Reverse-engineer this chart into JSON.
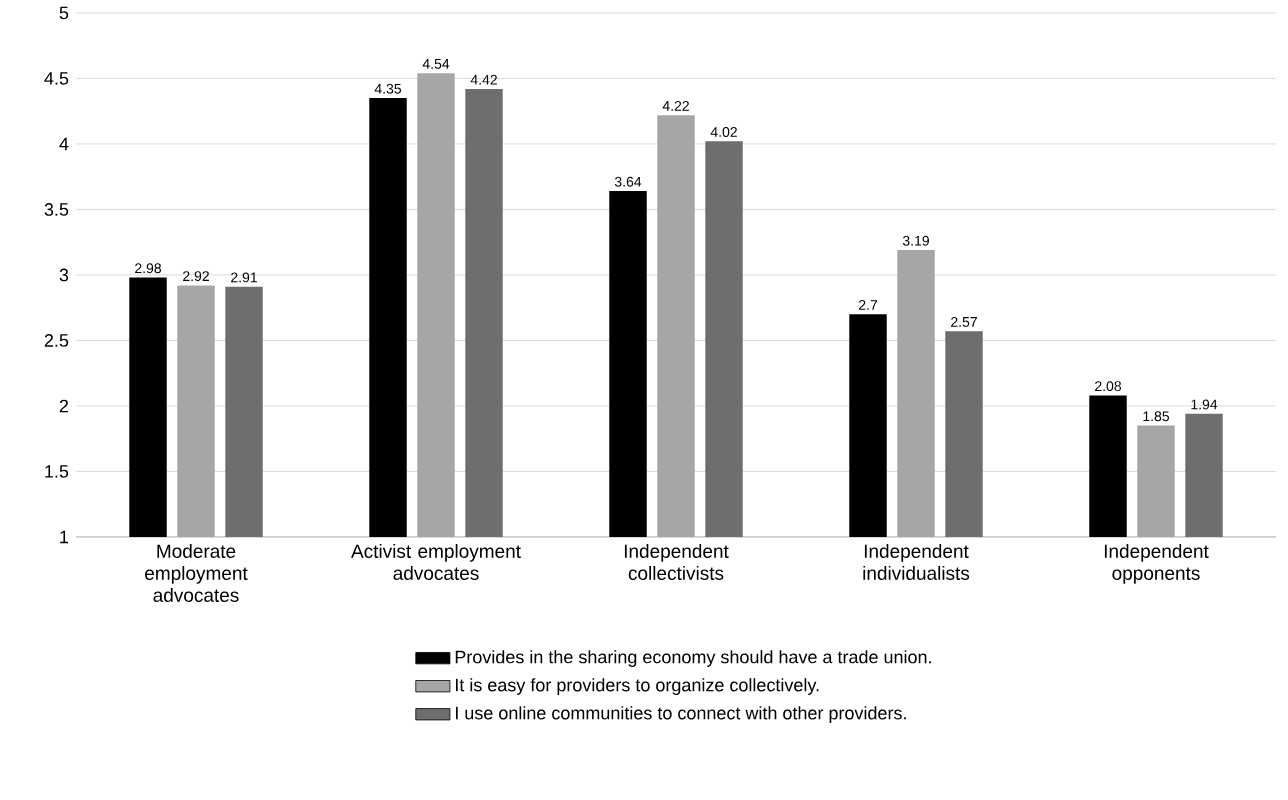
{
  "chart_data": {
    "type": "bar",
    "categories": [
      "Moderate employment advocates",
      "Activist employment advocates",
      "Independent collectivists",
      "Independent individualists",
      "Independent opponents"
    ],
    "series": [
      {
        "name": "Provides in the sharing economy should have a trade union.",
        "color": "#000000",
        "values": [
          2.98,
          4.35,
          3.64,
          2.7,
          2.08
        ]
      },
      {
        "name": "It is easy for providers to organize collectively.",
        "color": "#a6a6a6",
        "values": [
          2.92,
          4.54,
          4.22,
          3.19,
          1.85
        ]
      },
      {
        "name": "I use online communities to connect with other providers.",
        "color": "#6e6e6e",
        "values": [
          2.91,
          4.42,
          4.02,
          2.57,
          1.94
        ]
      }
    ],
    "ylim": [
      1,
      5
    ],
    "yticks": [
      1,
      1.5,
      2,
      2.5,
      3,
      3.5,
      4,
      4.5,
      5
    ],
    "grid": "y",
    "legend": "bottom",
    "data_labels": true
  }
}
